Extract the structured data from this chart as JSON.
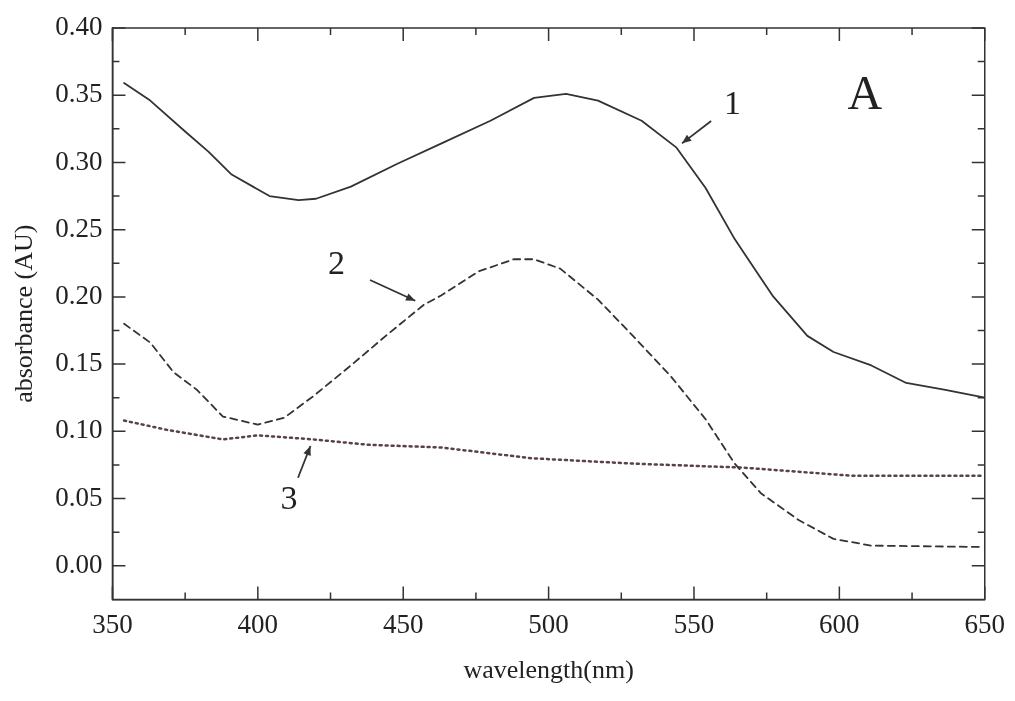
{
  "chart_data": {
    "type": "line",
    "xlabel": "wavelength(nm)",
    "ylabel": "absorbance (AU)",
    "xlim": [
      350,
      650
    ],
    "ylim": [
      -0.025,
      0.4
    ],
    "xticks": [
      350,
      {
        "value": 375,
        "label": null
      },
      400,
      {
        "value": 425,
        "label": null
      },
      450,
      {
        "value": 475,
        "label": null
      },
      500,
      {
        "value": 525,
        "label": null
      },
      550,
      {
        "value": 575,
        "label": null
      },
      600,
      {
        "value": 625,
        "label": null
      },
      650
    ],
    "yticks": [
      {
        "value": 0,
        "label": "0.00"
      },
      {
        "value": 0.025,
        "label": null
      },
      {
        "value": 0.05,
        "label": "0.05"
      },
      {
        "value": 0.075,
        "label": null
      },
      {
        "value": 0.1,
        "label": "0.10"
      },
      {
        "value": 0.125,
        "label": null
      },
      {
        "value": 0.15,
        "label": "0.15"
      },
      {
        "value": 0.175,
        "label": null
      },
      {
        "value": 0.2,
        "label": "0.20"
      },
      {
        "value": 0.225,
        "label": null
      },
      {
        "value": 0.25,
        "label": "0.25"
      },
      {
        "value": 0.275,
        "label": null
      },
      {
        "value": 0.3,
        "label": "0.30"
      },
      {
        "value": 0.325,
        "label": null
      },
      {
        "value": 0.35,
        "label": "0.35"
      },
      {
        "value": 0.375,
        "label": null
      },
      {
        "value": 0.4,
        "label": "0.40"
      }
    ],
    "grid": false,
    "legend": false,
    "marker": "none",
    "series": [
      {
        "color": "#333333",
        "line_style": "solid",
        "x": [
          354,
          363,
          375,
          383,
          391,
          404,
          414,
          420,
          432,
          448,
          463,
          480,
          495,
          506,
          517,
          532,
          544,
          554,
          564,
          577,
          589,
          598,
          611,
          623,
          636,
          650
        ],
        "values": [
          0.359,
          0.346,
          0.323,
          0.308,
          0.291,
          0.275,
          0.272,
          0.273,
          0.282,
          0.299,
          0.314,
          0.331,
          0.348,
          0.351,
          0.346,
          0.331,
          0.311,
          0.281,
          0.243,
          0.201,
          0.171,
          0.159,
          0.149,
          0.136,
          0.131,
          0.125
        ]
      },
      {
        "color": "#333333",
        "line_style": "dashed",
        "x": [
          354,
          363,
          371,
          379,
          388,
          400,
          409,
          419,
          432,
          444,
          457,
          463,
          476,
          488,
          495,
          504,
          517,
          529,
          542,
          554,
          564,
          573,
          586,
          598,
          611,
          649
        ],
        "values": [
          0.18,
          0.166,
          0.144,
          0.131,
          0.111,
          0.105,
          0.11,
          0.126,
          0.149,
          0.171,
          0.194,
          0.201,
          0.219,
          0.228,
          0.228,
          0.221,
          0.198,
          0.171,
          0.141,
          0.109,
          0.076,
          0.054,
          0.034,
          0.02,
          0.015,
          0.014
        ]
      },
      {
        "color": "#5a4048",
        "line_style": "dotted",
        "x": [
          354,
          369,
          388,
          400,
          419,
          438,
          463,
          494,
          529,
          567,
          604,
          649
        ],
        "values": [
          0.108,
          0.101,
          0.094,
          0.097,
          0.094,
          0.09,
          0.088,
          0.08,
          0.076,
          0.073,
          0.067,
          0.067
        ]
      }
    ],
    "annotations": [
      {
        "text": "1",
        "x": 544,
        "y": 0.311
      },
      {
        "text": "2",
        "x": 457,
        "y": 0.194
      },
      {
        "text": "3",
        "x": 419,
        "y": 0.094
      },
      "A"
    ]
  }
}
